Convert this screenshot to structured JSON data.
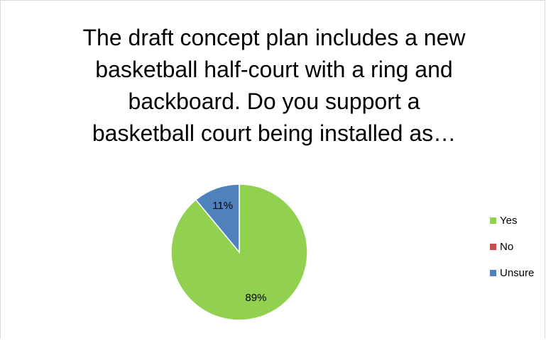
{
  "chart_data": {
    "type": "pie",
    "title": "The draft concept plan includes a new basketball half-court with a ring and backboard. Do you support a basketball court being installed as…",
    "title_lines": [
      "The draft concept plan includes a new",
      "basketball half-court with a ring and",
      "backboard. Do you support a",
      "basketball court being installed as…"
    ],
    "categories": [
      "Yes",
      "No",
      "Unsure"
    ],
    "values": [
      89,
      0,
      11
    ],
    "data_labels": [
      "89%",
      "",
      "11%"
    ],
    "colors": [
      "#92d050",
      "#c0504d",
      "#4f81bd"
    ],
    "legend_position": "right"
  }
}
